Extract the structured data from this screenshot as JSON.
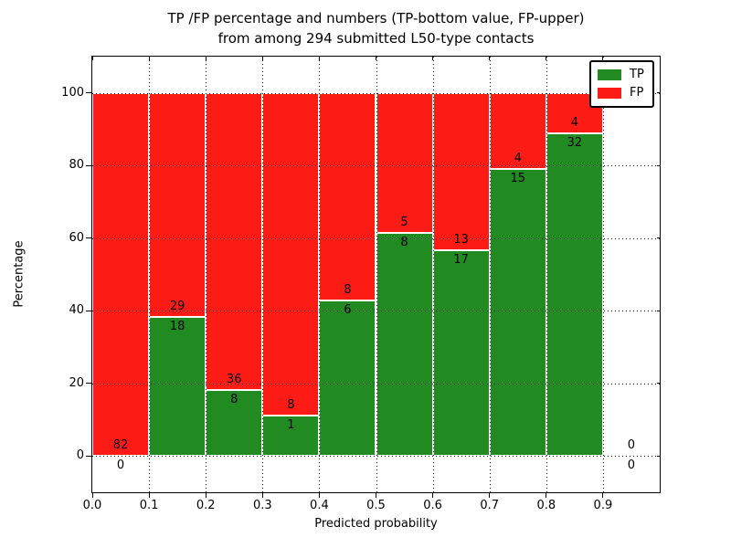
{
  "figure": {
    "title_line1": "TP /FP percentage and numbers (TP-bottom value, FP-upper)",
    "title_line2": "from among 294 submitted L50-type contacts",
    "xlabel": "Predicted probability",
    "ylabel": "Percentage"
  },
  "legend": {
    "position": "upper right",
    "items": [
      {
        "label": "TP",
        "color": "#218a21"
      },
      {
        "label": "FP",
        "color": "#fd1c15"
      }
    ]
  },
  "chart_data": {
    "type": "bar",
    "subtype": "stacked-percentage",
    "title": "TP /FP percentage and numbers (TP-bottom value, FP-upper) from among 294 submitted L50-type contacts",
    "xlabel": "Predicted probability",
    "ylabel": "Percentage",
    "xlim": [
      0.0,
      1.0
    ],
    "ylim": [
      -10,
      110
    ],
    "grid": "dotted",
    "legend_position": "upper right",
    "total_contacts": 294,
    "colors": {
      "tp": "#218a21",
      "fp": "#fd1c15",
      "bar_edge": "#ffffff"
    },
    "xticks": [
      0.0,
      0.1,
      0.2,
      0.3,
      0.4,
      0.5,
      0.6,
      0.7,
      0.8,
      0.9
    ],
    "xtick_labels": [
      "0.0",
      "0.1",
      "0.2",
      "0.3",
      "0.4",
      "0.5",
      "0.6",
      "0.7",
      "0.8",
      "0.9"
    ],
    "yticks": [
      0,
      20,
      40,
      60,
      80,
      100
    ],
    "ytick_labels": [
      "0",
      "20",
      "40",
      "60",
      "80",
      "100"
    ],
    "bins": [
      {
        "x0": 0.0,
        "x1": 0.1,
        "tp": 0,
        "fp": 82,
        "tp_pct": 0.0
      },
      {
        "x0": 0.1,
        "x1": 0.2,
        "tp": 18,
        "fp": 29,
        "tp_pct": 38.3
      },
      {
        "x0": 0.2,
        "x1": 0.3,
        "tp": 8,
        "fp": 36,
        "tp_pct": 18.2
      },
      {
        "x0": 0.3,
        "x1": 0.4,
        "tp": 1,
        "fp": 8,
        "tp_pct": 11.1
      },
      {
        "x0": 0.4,
        "x1": 0.5,
        "tp": 6,
        "fp": 8,
        "tp_pct": 42.9
      },
      {
        "x0": 0.5,
        "x1": 0.6,
        "tp": 8,
        "fp": 5,
        "tp_pct": 61.5
      },
      {
        "x0": 0.6,
        "x1": 0.7,
        "tp": 17,
        "fp": 13,
        "tp_pct": 56.7
      },
      {
        "x0": 0.7,
        "x1": 0.8,
        "tp": 15,
        "fp": 4,
        "tp_pct": 78.9
      },
      {
        "x0": 0.8,
        "x1": 0.9,
        "tp": 32,
        "fp": 4,
        "tp_pct": 88.9
      },
      {
        "x0": 0.9,
        "x1": 1.0,
        "tp": 0,
        "fp": 0,
        "tp_pct": null
      }
    ]
  }
}
